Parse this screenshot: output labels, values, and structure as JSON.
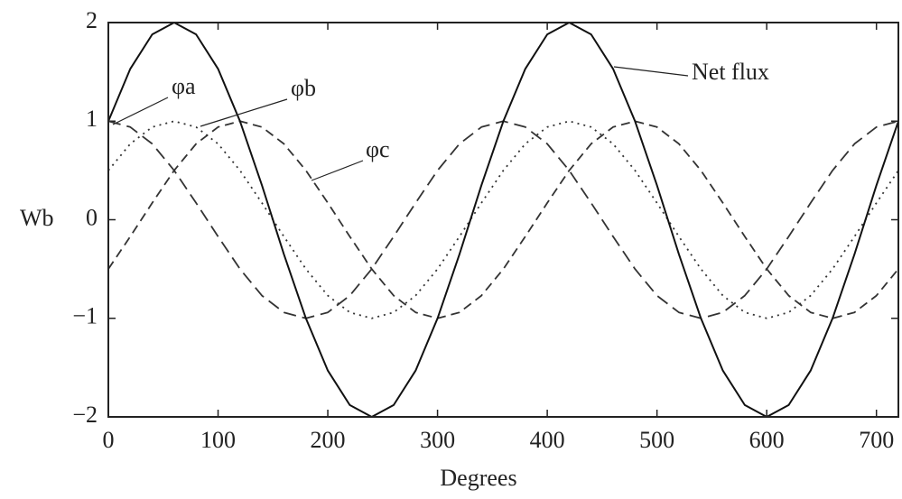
{
  "chart_data": {
    "type": "line",
    "xlabel": "Degrees",
    "ylabel": "Wb",
    "x": [
      0,
      20,
      40,
      60,
      80,
      100,
      120,
      140,
      160,
      180,
      200,
      220,
      240,
      260,
      280,
      300,
      320,
      340,
      360,
      380,
      400,
      420,
      440,
      460,
      480,
      500,
      520,
      540,
      560,
      580,
      600,
      620,
      640,
      660,
      680,
      700,
      720
    ],
    "series": [
      {
        "name": "φa",
        "color": "#333333",
        "dash": "14 7",
        "values": [
          1,
          0.94,
          0.77,
          0.5,
          0.17,
          -0.17,
          -0.5,
          -0.77,
          -0.94,
          -1,
          -0.94,
          -0.77,
          -0.5,
          -0.17,
          0.17,
          0.5,
          0.77,
          0.94,
          1,
          0.94,
          0.77,
          0.5,
          0.17,
          -0.17,
          -0.5,
          -0.77,
          -0.94,
          -1,
          -0.94,
          -0.77,
          -0.5,
          -0.17,
          0.17,
          0.5,
          0.77,
          0.94,
          1
        ]
      },
      {
        "name": "φb",
        "color": "#333333",
        "dash": "2 5",
        "values": [
          0.5,
          0.77,
          0.94,
          1,
          0.94,
          0.77,
          0.5,
          0.17,
          -0.17,
          -0.5,
          -0.77,
          -0.94,
          -1,
          -0.94,
          -0.77,
          -0.5,
          -0.17,
          0.17,
          0.5,
          0.77,
          0.94,
          1,
          0.94,
          0.77,
          0.5,
          0.17,
          -0.17,
          -0.5,
          -0.77,
          -0.94,
          -1,
          -0.94,
          -0.77,
          -0.5,
          -0.17,
          0.17,
          0.5
        ]
      },
      {
        "name": "φc",
        "color": "#333333",
        "dash": "10 6",
        "values": [
          -0.5,
          -0.17,
          0.17,
          0.5,
          0.77,
          0.94,
          1,
          0.94,
          0.77,
          0.5,
          0.17,
          -0.17,
          -0.5,
          -0.77,
          -0.94,
          -1,
          -0.94,
          -0.77,
          -0.5,
          -0.17,
          0.17,
          0.5,
          0.77,
          0.94,
          1,
          0.94,
          0.77,
          0.5,
          0.17,
          -0.17,
          -0.5,
          -0.77,
          -0.94,
          -1,
          -0.94,
          -0.77,
          -0.5
        ]
      },
      {
        "name": "Net flux",
        "color": "#111111",
        "dash": "none",
        "values": [
          1,
          1.53,
          1.88,
          2,
          1.88,
          1.53,
          1,
          0.35,
          -0.35,
          -1,
          -1.53,
          -1.88,
          -2,
          -1.88,
          -1.53,
          -1,
          -0.35,
          0.35,
          1,
          1.53,
          1.88,
          2,
          1.88,
          1.53,
          1,
          0.35,
          -0.35,
          -1,
          -1.53,
          -1.88,
          -2,
          -1.88,
          -1.53,
          -1,
          -0.35,
          0.35,
          1
        ]
      }
    ],
    "xlim": [
      0,
      720
    ],
    "xticks": [
      0,
      100,
      200,
      300,
      400,
      500,
      600,
      700
    ],
    "ylim": [
      -2,
      2
    ],
    "yticks": [
      {
        "value": -2,
        "label": "−2"
      },
      {
        "value": -1,
        "label": "−1"
      },
      0,
      1,
      2
    ]
  }
}
